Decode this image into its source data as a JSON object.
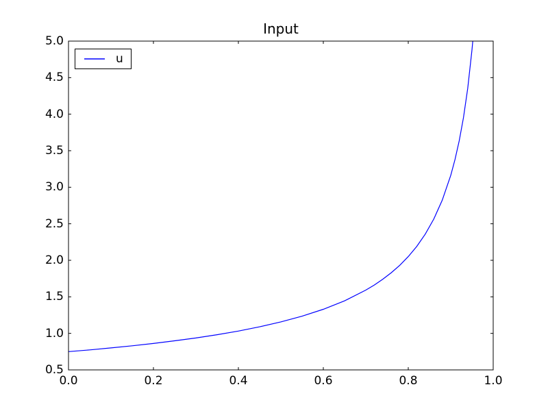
{
  "chart_data": {
    "type": "line",
    "title": "Input",
    "xlabel": "",
    "ylabel": "",
    "xlim": [
      0.0,
      1.0
    ],
    "ylim": [
      0.5,
      5.0
    ],
    "xticks": [
      0.0,
      0.2,
      0.4,
      0.6,
      0.8,
      1.0
    ],
    "xtick_labels": [
      "0.0",
      "0.2",
      "0.4",
      "0.6",
      "0.8",
      "1.0"
    ],
    "yticks": [
      0.5,
      1.0,
      1.5,
      2.0,
      2.5,
      3.0,
      3.5,
      4.0,
      4.5,
      5.0
    ],
    "ytick_labels": [
      "0.5",
      "1.0",
      "1.5",
      "2.0",
      "2.5",
      "3.0",
      "3.5",
      "4.0",
      "4.5",
      "5.0"
    ],
    "grid": false,
    "legend": {
      "position": "upper-left",
      "entries": [
        {
          "label": "u",
          "color": "#0000ff"
        }
      ]
    },
    "series": [
      {
        "name": "u",
        "color": "#0000ff",
        "x": [
          0.0,
          0.05,
          0.1,
          0.15,
          0.2,
          0.25,
          0.3,
          0.35,
          0.4,
          0.45,
          0.5,
          0.55,
          0.6,
          0.65,
          0.7,
          0.72,
          0.74,
          0.76,
          0.78,
          0.8,
          0.82,
          0.84,
          0.86,
          0.88,
          0.9,
          0.91,
          0.92,
          0.93,
          0.94,
          0.95,
          0.952
        ],
        "y": [
          0.75,
          0.774,
          0.801,
          0.83,
          0.862,
          0.898,
          0.937,
          0.982,
          1.032,
          1.09,
          1.157,
          1.235,
          1.33,
          1.445,
          1.592,
          1.662,
          1.741,
          1.83,
          1.932,
          2.051,
          2.19,
          2.358,
          2.563,
          2.822,
          3.162,
          3.378,
          3.636,
          3.953,
          4.352,
          4.878,
          5.0
        ]
      }
    ]
  },
  "colors": {
    "axes": "#000000",
    "text": "#000000",
    "background": "#ffffff"
  }
}
